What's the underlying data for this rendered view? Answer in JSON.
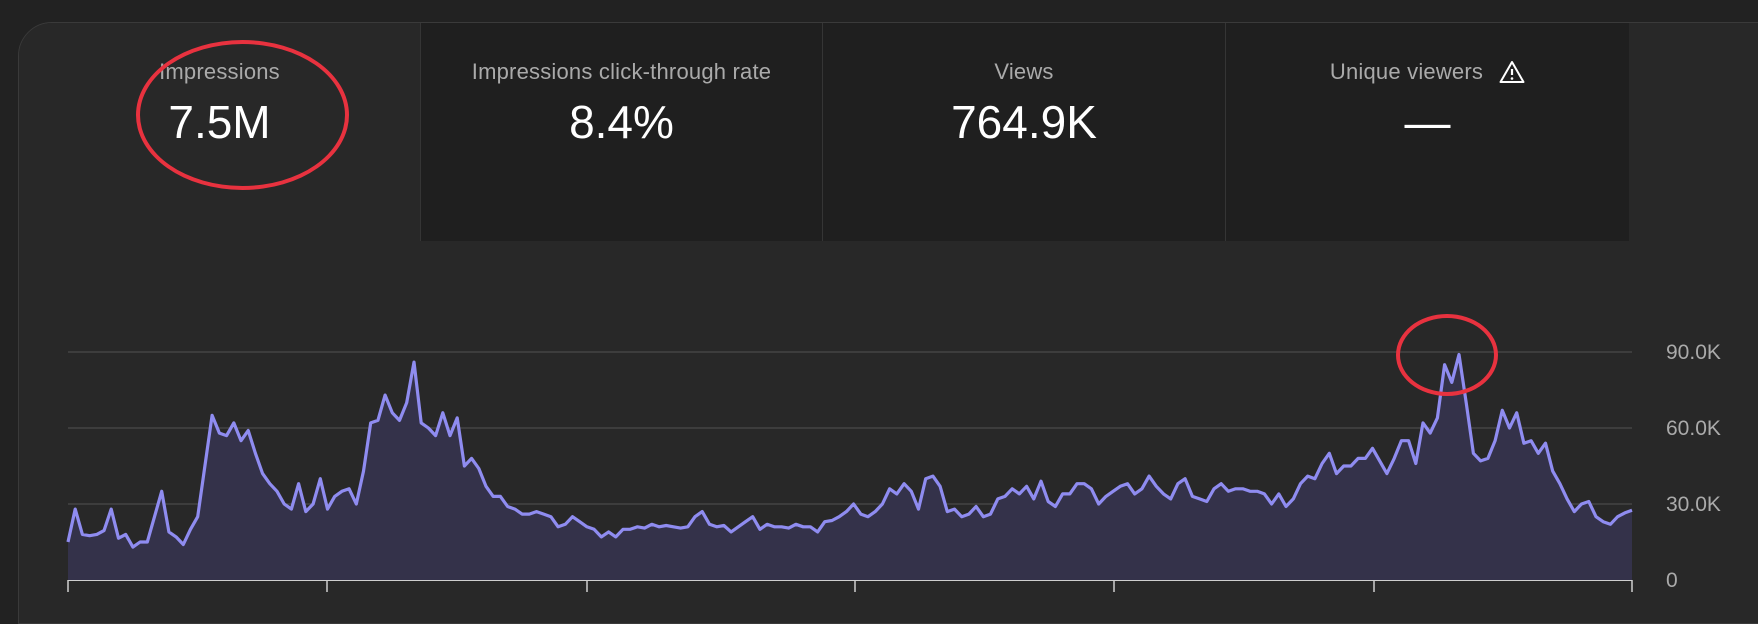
{
  "tabs": [
    {
      "label": "Impressions",
      "value": "7.5M",
      "selected": true
    },
    {
      "label": "Impressions click-through rate",
      "value": "8.4%",
      "selected": false
    },
    {
      "label": "Views",
      "value": "764.9K",
      "selected": false
    },
    {
      "label": "Unique viewers",
      "value": "—",
      "selected": false,
      "icon": "warning-icon"
    }
  ],
  "colors": {
    "line": "#8f8cf0",
    "fill": "#34324a",
    "annotation": "#e8323f",
    "grid": "#4a4a4a"
  },
  "chart_data": {
    "type": "area",
    "series": [
      {
        "values": [
          15000,
          28000,
          18000,
          17500,
          18000,
          19500,
          28000,
          16500,
          18000,
          13000,
          15000,
          15000,
          25000,
          35000,
          19000,
          17000,
          14000,
          20000,
          25000,
          45000,
          65000,
          58000,
          57000,
          62000,
          55000,
          59000,
          50000,
          42000,
          38000,
          35000,
          30000,
          28000,
          38000,
          27000,
          30000,
          40000,
          28000,
          33000,
          35000,
          36000,
          30000,
          43000,
          62000,
          63000,
          73000,
          66000,
          63000,
          70000,
          86000,
          62000,
          60000,
          57000,
          66000,
          57000,
          64000,
          45000,
          48000,
          44000,
          37000,
          33000,
          33000,
          29000,
          28000,
          26000,
          26000,
          27000,
          26000,
          25000,
          21000,
          22000,
          25000,
          23000,
          21000,
          20000,
          17000,
          19000,
          17000,
          20000,
          20000,
          21000,
          20500,
          22000,
          21000,
          21500,
          21000,
          20500,
          21000,
          25000,
          27000,
          22000,
          21000,
          21500,
          19000,
          21000,
          23000,
          25000,
          20000,
          22000,
          21000,
          21000,
          20500,
          22000,
          21000,
          21000,
          19000,
          23000,
          23500,
          25000,
          27000,
          30000,
          26000,
          25000,
          27000,
          30000,
          36000,
          34000,
          38000,
          35000,
          28000,
          40000,
          41000,
          37000,
          27000,
          28000,
          25000,
          26000,
          29000,
          25000,
          26000,
          32000,
          33000,
          36000,
          34000,
          37000,
          32000,
          39000,
          31000,
          29000,
          34000,
          34000,
          38000,
          38000,
          36000,
          30000,
          33000,
          35000,
          37000,
          38000,
          34000,
          36000,
          41000,
          37000,
          34000,
          32000,
          38000,
          40000,
          33000,
          32000,
          31000,
          36000,
          38000,
          35000,
          36000,
          36000,
          35000,
          35000,
          34000,
          30000,
          34000,
          29000,
          32000,
          38000,
          41000,
          40000,
          46000,
          50000,
          42000,
          45000,
          45000,
          48000,
          48000,
          52000,
          47000,
          42000,
          48000,
          55000,
          55000,
          46000,
          62000,
          58000,
          64000,
          85000,
          78000,
          89000,
          70000,
          50000,
          47000,
          48000,
          55000,
          67000,
          60000,
          66000,
          54000,
          55000,
          50000,
          54000,
          43000,
          38000,
          32000,
          27000,
          30000,
          31000,
          25000,
          23000,
          22000,
          25000,
          26500,
          27500
        ]
      }
    ],
    "y_ticks": [
      "0",
      "30.0K",
      "60.0K",
      "90.0K"
    ],
    "ylim": [
      0,
      90000
    ],
    "grid": true
  }
}
